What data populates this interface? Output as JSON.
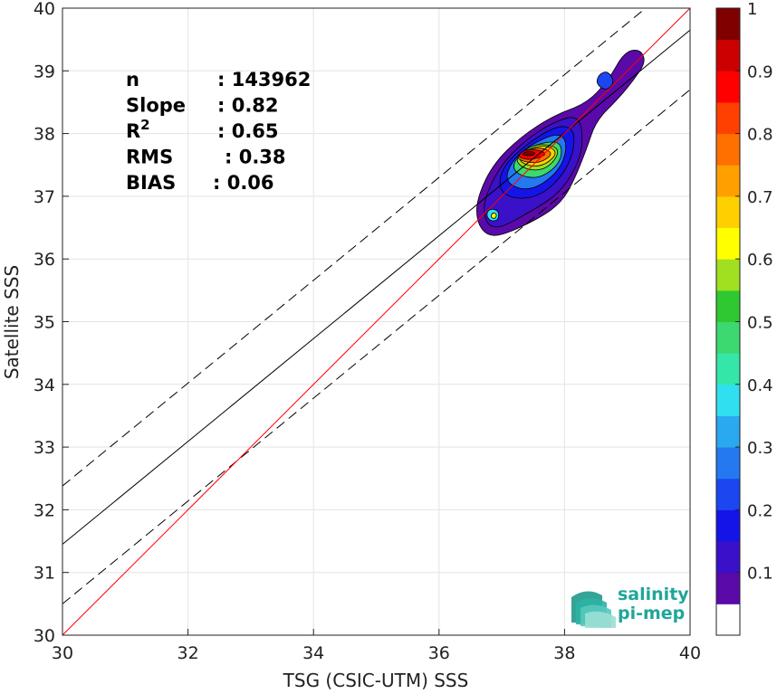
{
  "chart_data": {
    "type": "contour-density-scatter",
    "xlabel": "TSG (CSIC-UTM) SSS",
    "ylabel": "Satellite SSS",
    "xlim": [
      30,
      40
    ],
    "ylim": [
      30,
      40
    ],
    "xticks": [
      "30",
      "32",
      "34",
      "36",
      "38",
      "40"
    ],
    "yticks": [
      "30",
      "31",
      "32",
      "33",
      "34",
      "35",
      "36",
      "37",
      "38",
      "39",
      "40"
    ],
    "grid": true,
    "stats": [
      {
        "label": "n",
        "value": ": 143962"
      },
      {
        "label": "Slope",
        "value": ": 0.82"
      },
      {
        "label": "R",
        "sup": "2",
        "value": ": 0.65"
      },
      {
        "label": "RMS",
        "value": ": 0.38"
      },
      {
        "label": "BIAS",
        "value": ": 0.06"
      }
    ],
    "reference_lines": {
      "one_to_one": {
        "from": [
          30,
          30
        ],
        "to": [
          40,
          40
        ],
        "color": "#ff0000"
      },
      "regression": {
        "from": [
          30,
          31.45
        ],
        "to": [
          40,
          39.65
        ],
        "color": "#000000"
      },
      "upper_bound": {
        "from": [
          30,
          32.38
        ],
        "to": [
          40,
          40.58
        ],
        "color": "#000000",
        "dashed": true
      },
      "lower_bound": {
        "from": [
          30,
          30.5
        ],
        "to": [
          40,
          38.7
        ],
        "color": "#000000",
        "dashed": true
      }
    },
    "density_contours": [
      {
        "level": 0.05,
        "points": [
          [
            36.6,
            36.6
          ],
          [
            36.6,
            36.95
          ],
          [
            36.85,
            37.5
          ],
          [
            37.3,
            37.95
          ],
          [
            37.85,
            38.3
          ],
          [
            38.35,
            38.48
          ],
          [
            38.7,
            38.85
          ],
          [
            38.95,
            39.3
          ],
          [
            39.2,
            39.35
          ],
          [
            39.3,
            39.15
          ],
          [
            39.1,
            38.85
          ],
          [
            38.85,
            38.55
          ],
          [
            38.5,
            38.2
          ],
          [
            38.35,
            37.75
          ],
          [
            38.15,
            37.25
          ],
          [
            37.95,
            36.9
          ],
          [
            37.6,
            36.65
          ],
          [
            37.0,
            36.37
          ],
          [
            36.75,
            36.38
          ]
        ]
      },
      {
        "level": 0.1,
        "points": [
          [
            36.72,
            36.68
          ],
          [
            36.72,
            36.95
          ],
          [
            36.95,
            37.45
          ],
          [
            37.35,
            37.88
          ],
          [
            37.85,
            38.2
          ],
          [
            38.25,
            38.3
          ],
          [
            38.3,
            37.75
          ],
          [
            38.1,
            37.3
          ],
          [
            37.85,
            37.0
          ],
          [
            37.5,
            36.78
          ],
          [
            37.0,
            36.5
          ],
          [
            36.8,
            36.52
          ]
        ]
      },
      {
        "level": 0.15,
        "points": [
          [
            36.95,
            37.1
          ],
          [
            37.0,
            37.45
          ],
          [
            37.35,
            37.8
          ],
          [
            37.85,
            38.12
          ],
          [
            38.15,
            38.1
          ],
          [
            38.15,
            37.7
          ],
          [
            37.95,
            37.3
          ],
          [
            37.6,
            37.0
          ],
          [
            37.2,
            36.95
          ]
        ]
      },
      {
        "level": 0.2,
        "points": [
          [
            38.5,
            38.8
          ],
          [
            38.55,
            38.95
          ],
          [
            38.7,
            39.0
          ],
          [
            38.8,
            38.8
          ],
          [
            38.65,
            38.68
          ]
        ]
      },
      {
        "level": 0.25,
        "points": [
          [
            37.05,
            37.25
          ],
          [
            37.15,
            37.55
          ],
          [
            37.45,
            37.82
          ],
          [
            37.9,
            38.02
          ],
          [
            38.05,
            37.85
          ],
          [
            37.95,
            37.45
          ],
          [
            37.6,
            37.15
          ],
          [
            37.3,
            37.1
          ]
        ]
      },
      {
        "level": 0.35,
        "points": [
          [
            36.75,
            36.7
          ],
          [
            36.8,
            36.8
          ],
          [
            36.95,
            36.78
          ],
          [
            36.95,
            36.62
          ],
          [
            36.82,
            36.6
          ]
        ]
      },
      {
        "level": 0.45,
        "points": [
          [
            37.15,
            37.45
          ],
          [
            37.3,
            37.7
          ],
          [
            37.6,
            37.85
          ],
          [
            37.95,
            37.88
          ],
          [
            37.95,
            37.55
          ],
          [
            37.65,
            37.3
          ],
          [
            37.35,
            37.3
          ]
        ]
      },
      {
        "level": 0.55,
        "points": [
          [
            37.2,
            37.55
          ],
          [
            37.35,
            37.75
          ],
          [
            37.65,
            37.85
          ],
          [
            37.95,
            37.75
          ],
          [
            37.75,
            37.45
          ],
          [
            37.45,
            37.4
          ]
        ]
      },
      {
        "level": 0.6,
        "points": [
          [
            36.82,
            36.66
          ],
          [
            36.85,
            36.74
          ],
          [
            36.92,
            36.72
          ],
          [
            36.9,
            36.64
          ]
        ]
      },
      {
        "level": 0.65,
        "points": [
          [
            37.25,
            37.58
          ],
          [
            37.4,
            37.75
          ],
          [
            37.7,
            37.82
          ],
          [
            37.9,
            37.7
          ],
          [
            37.7,
            37.5
          ],
          [
            37.45,
            37.47
          ]
        ]
      },
      {
        "level": 0.75,
        "points": [
          [
            37.22,
            37.6
          ],
          [
            37.35,
            37.74
          ],
          [
            37.65,
            37.78
          ],
          [
            37.82,
            37.68
          ],
          [
            37.65,
            37.55
          ],
          [
            37.45,
            37.53
          ]
        ]
      },
      {
        "level": 0.85,
        "points": [
          [
            37.25,
            37.63
          ],
          [
            37.35,
            37.74
          ],
          [
            37.6,
            37.74
          ],
          [
            37.72,
            37.67
          ],
          [
            37.55,
            37.6
          ],
          [
            37.4,
            37.58
          ]
        ]
      },
      {
        "level": 0.95,
        "points": [
          [
            37.3,
            37.66
          ],
          [
            37.4,
            37.72
          ],
          [
            37.55,
            37.7
          ],
          [
            37.48,
            37.64
          ]
        ]
      }
    ],
    "colorbar": {
      "ticks": [
        "0.1",
        "0.2",
        "0.3",
        "0.4",
        "0.5",
        "0.6",
        "0.7",
        "0.8",
        "0.9",
        "1"
      ],
      "levels": [
        0,
        0.05,
        0.1,
        0.15,
        0.2,
        0.25,
        0.3,
        0.35,
        0.4,
        0.45,
        0.5,
        0.55,
        0.6,
        0.65,
        0.7,
        0.75,
        0.8,
        0.85,
        0.9,
        0.95,
        1.0
      ],
      "colors": [
        "#ffffff",
        "#5a0aa8",
        "#3a10c8",
        "#1414e8",
        "#1c46f0",
        "#2478f0",
        "#2aa8f0",
        "#30e0f0",
        "#34e6a8",
        "#3cd870",
        "#30c830",
        "#a0e020",
        "#ffff00",
        "#ffd000",
        "#ffa000",
        "#ff7000",
        "#ff4000",
        "#ff0000",
        "#cc0000",
        "#800000"
      ]
    },
    "logo": {
      "line1": "salinity",
      "line2": "pi-mep"
    }
  }
}
